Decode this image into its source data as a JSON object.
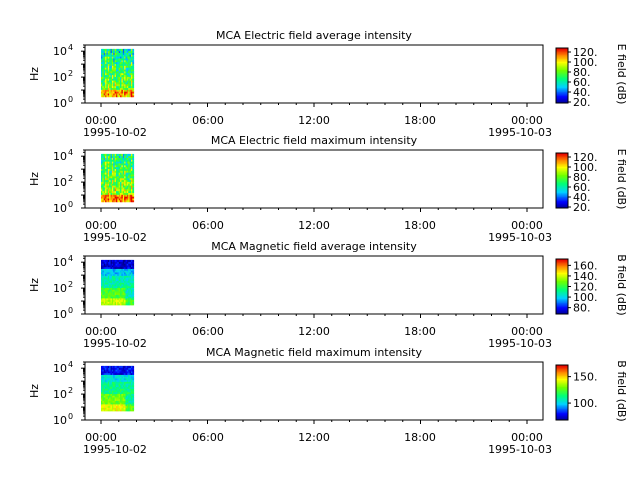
{
  "chart_data": [
    {
      "type": "heatmap",
      "title": "MCA  Electric field average intensity",
      "ylabel": "Hz",
      "y_scale": "log",
      "ylim": [
        1,
        30000
      ],
      "y_ticks": [
        {
          "base": "10",
          "exp": "0"
        },
        {
          "base": "10",
          "exp": "2"
        },
        {
          "base": "10",
          "exp": "4"
        }
      ],
      "x_ticks": [
        "00:00",
        "06:00",
        "12:00",
        "18:00",
        "00:00"
      ],
      "x_dates": [
        "1995-10-02",
        "1995-10-03"
      ],
      "colorbar": {
        "label": "E field (dB)",
        "range": [
          18,
          128
        ],
        "ticks": [
          "120.",
          "100.",
          "80.",
          "60.",
          "40.",
          "20."
        ]
      },
      "data_extent": {
        "time_start": "00:00",
        "time_end": "01:50",
        "freq_low_hz": 3,
        "freq_high_hz": 15000
      },
      "profile": "electric_avg"
    },
    {
      "type": "heatmap",
      "title": "MCA  Electric field maximum intensity",
      "ylabel": "Hz",
      "y_scale": "log",
      "ylim": [
        1,
        30000
      ],
      "y_ticks": [
        {
          "base": "10",
          "exp": "0"
        },
        {
          "base": "10",
          "exp": "2"
        },
        {
          "base": "10",
          "exp": "4"
        }
      ],
      "x_ticks": [
        "00:00",
        "06:00",
        "12:00",
        "18:00",
        "00:00"
      ],
      "x_dates": [
        "1995-10-02",
        "1995-10-03"
      ],
      "colorbar": {
        "label": "E field (dB)",
        "range": [
          18,
          128
        ],
        "ticks": [
          "120.",
          "100.",
          "80.",
          "60.",
          "40.",
          "20."
        ]
      },
      "data_extent": {
        "time_start": "00:00",
        "time_end": "01:50",
        "freq_low_hz": 3,
        "freq_high_hz": 15000
      },
      "profile": "electric_max"
    },
    {
      "type": "heatmap",
      "title": "MCA  Magnetic field average intensity",
      "ylabel": "Hz",
      "y_scale": "log",
      "ylim": [
        1,
        30000
      ],
      "y_ticks": [
        {
          "base": "10",
          "exp": "0"
        },
        {
          "base": "10",
          "exp": "2"
        },
        {
          "base": "10",
          "exp": "4"
        }
      ],
      "x_ticks": [
        "00:00",
        "06:00",
        "12:00",
        "18:00",
        "00:00"
      ],
      "x_dates": [
        "1995-10-02",
        "1995-10-03"
      ],
      "colorbar": {
        "label": "B field (dB)",
        "range": [
          68,
          172
        ],
        "ticks": [
          "160.",
          "140.",
          "120.",
          "100.",
          "80."
        ]
      },
      "data_extent": {
        "time_start": "00:00",
        "time_end": "01:50",
        "freq_low_hz": 5,
        "freq_high_hz": 15000
      },
      "profile": "magnetic_avg"
    },
    {
      "type": "heatmap",
      "title": "MCA  Magnetic field maximum intensity",
      "ylabel": "Hz",
      "y_scale": "log",
      "ylim": [
        1,
        30000
      ],
      "y_ticks": [
        {
          "base": "10",
          "exp": "0"
        },
        {
          "base": "10",
          "exp": "2"
        },
        {
          "base": "10",
          "exp": "4"
        }
      ],
      "x_ticks": [
        "00:00",
        "06:00",
        "12:00",
        "18:00",
        "00:00"
      ],
      "x_dates": [
        "1995-10-02",
        "1995-10-03"
      ],
      "colorbar": {
        "label": "B field (dB)",
        "range": [
          68,
          172
        ],
        "ticks": [
          "150.",
          "100."
        ]
      },
      "data_extent": {
        "time_start": "00:00",
        "time_end": "01:50",
        "freq_low_hz": 5,
        "freq_high_hz": 15000
      },
      "profile": "magnetic_max"
    }
  ]
}
